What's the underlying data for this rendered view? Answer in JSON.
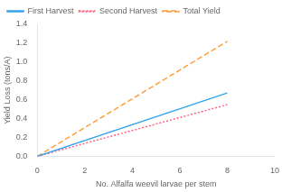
{
  "chart_data": {
    "type": "line",
    "xlabel": "No. Alfalfa weevil larvae per stem",
    "ylabel": "Yield Loss (tons/A)",
    "xlim": [
      0,
      10
    ],
    "ylim": [
      0,
      1.4
    ],
    "xticks": [
      0,
      2,
      4,
      6,
      8,
      10
    ],
    "yticks": [
      {
        "value": 0,
        "label": "0.0"
      },
      0.2,
      0.4,
      0.6,
      0.8,
      {
        "value": 1,
        "label": "1.0"
      },
      1.2,
      1.4
    ],
    "x": [
      0,
      8
    ],
    "series": [
      {
        "name": "First Harvest",
        "values": [
          0,
          0.672
        ],
        "line_style": "solid"
      },
      {
        "name": "Second Harvest",
        "values": [
          0,
          0.548
        ],
        "line_style": "dotted"
      },
      {
        "name": "Total Yield",
        "values": [
          0,
          1.22
        ],
        "line_style": "dashed"
      }
    ],
    "legend": "upper left",
    "grid": false
  }
}
